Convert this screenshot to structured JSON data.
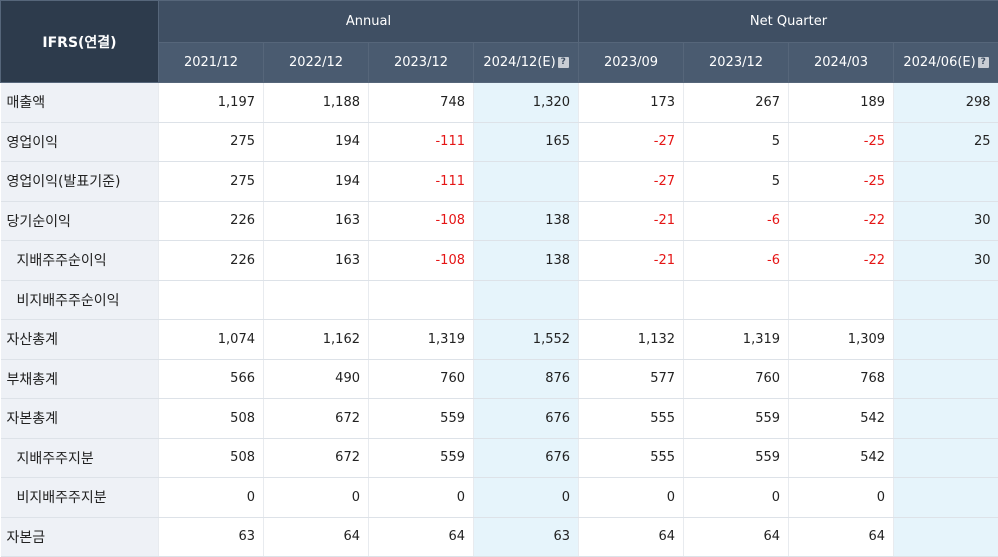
{
  "header": {
    "corner_label": "IFRS(연결)",
    "annual_label": "Annual",
    "quarter_label": "Net Quarter",
    "annual_periods": [
      "2021/12",
      "2022/12",
      "2023/12",
      "2024/12(E)"
    ],
    "quarter_periods": [
      "2023/09",
      "2023/12",
      "2024/03",
      "2024/06(E)"
    ],
    "help_icon_glyph": "?"
  },
  "colors": {
    "header_bg": "#3f4f63",
    "label_bg": "#eef1f6",
    "estimate_bg": "#e6f4fb",
    "negative_text": "#e51515"
  },
  "rows": [
    {
      "label": "매출액",
      "sub": false,
      "values": [
        "1,197",
        "1,188",
        "748",
        "1,320",
        "173",
        "267",
        "189",
        "298"
      ]
    },
    {
      "label": "영업이익",
      "sub": false,
      "values": [
        "275",
        "194",
        "-111",
        "165",
        "-27",
        "5",
        "-25",
        "25"
      ]
    },
    {
      "label": "영업이익(발표기준)",
      "sub": false,
      "values": [
        "275",
        "194",
        "-111",
        "",
        "-27",
        "5",
        "-25",
        ""
      ]
    },
    {
      "label": "당기순이익",
      "sub": false,
      "values": [
        "226",
        "163",
        "-108",
        "138",
        "-21",
        "-6",
        "-22",
        "30"
      ]
    },
    {
      "label": "지배주주순이익",
      "sub": true,
      "values": [
        "226",
        "163",
        "-108",
        "138",
        "-21",
        "-6",
        "-22",
        "30"
      ]
    },
    {
      "label": "비지배주주순이익",
      "sub": true,
      "values": [
        "",
        "",
        "",
        "",
        "",
        "",
        "",
        ""
      ]
    },
    {
      "label": "자산총계",
      "sub": false,
      "values": [
        "1,074",
        "1,162",
        "1,319",
        "1,552",
        "1,132",
        "1,319",
        "1,309",
        ""
      ]
    },
    {
      "label": "부채총계",
      "sub": false,
      "values": [
        "566",
        "490",
        "760",
        "876",
        "577",
        "760",
        "768",
        ""
      ]
    },
    {
      "label": "자본총계",
      "sub": false,
      "values": [
        "508",
        "672",
        "559",
        "676",
        "555",
        "559",
        "542",
        ""
      ]
    },
    {
      "label": "지배주주지분",
      "sub": true,
      "values": [
        "508",
        "672",
        "559",
        "676",
        "555",
        "559",
        "542",
        ""
      ]
    },
    {
      "label": "비지배주주지분",
      "sub": true,
      "values": [
        "0",
        "0",
        "0",
        "0",
        "0",
        "0",
        "0",
        ""
      ]
    },
    {
      "label": "자본금",
      "sub": false,
      "values": [
        "63",
        "64",
        "64",
        "63",
        "64",
        "64",
        "64",
        ""
      ]
    }
  ]
}
